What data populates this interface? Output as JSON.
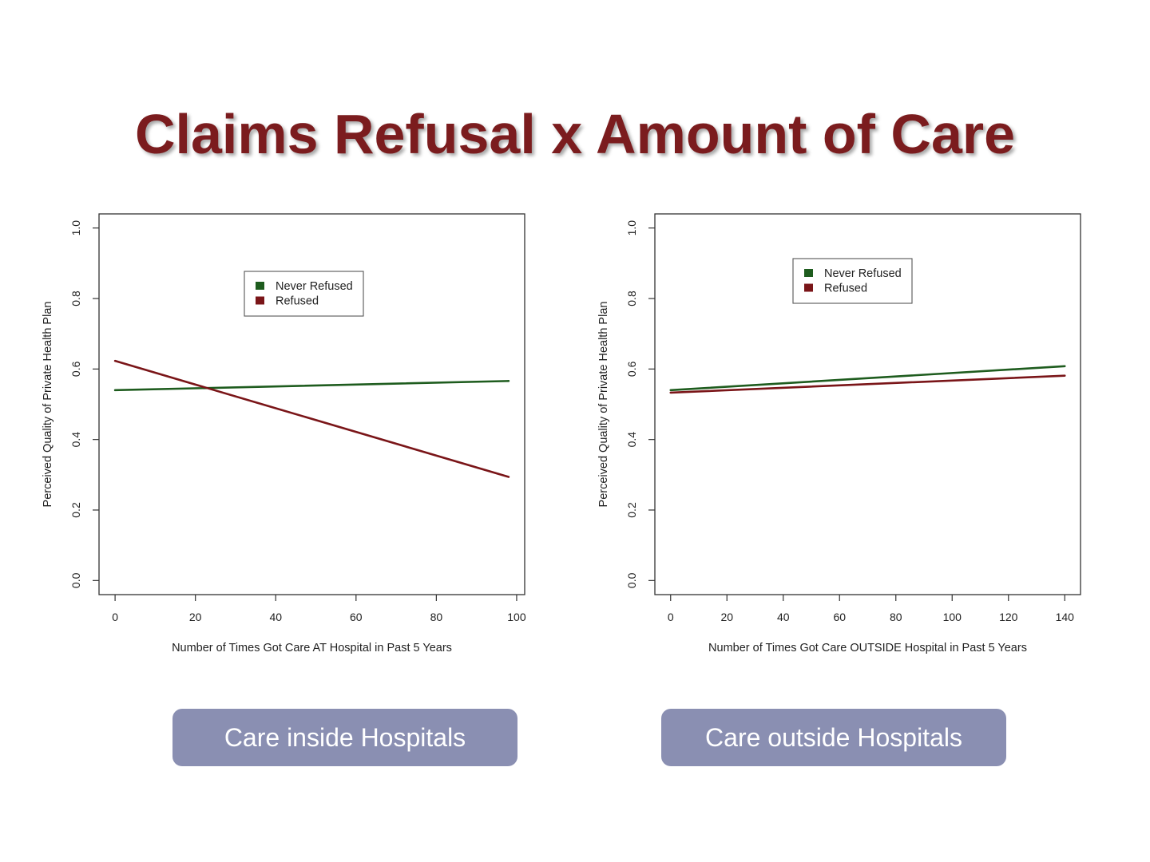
{
  "slide": {
    "title": "Claims Refusal x Amount of Care",
    "captions": [
      "Care inside Hospitals",
      "Care outside Hospitals"
    ]
  },
  "colors": {
    "title": "#7b1c1e",
    "never_refused": "#1e5c1e",
    "refused": "#7a1518",
    "caption_bg": "#8a8fb2"
  },
  "chart_data": [
    {
      "type": "line",
      "xlabel": "Number of Times Got Care AT Hospital in Past 5 Years",
      "ylabel": "Perceived Quality of Private Health Plan",
      "xlim": [
        -4,
        102
      ],
      "ylim": [
        -0.04,
        1.04
      ],
      "xticks": [
        0,
        20,
        40,
        60,
        80,
        100
      ],
      "xtick_labels": [
        "0",
        "20",
        "40",
        "60",
        "80",
        "100"
      ],
      "yticks": [
        0.0,
        0.2,
        0.4,
        0.6,
        0.8,
        1.0
      ],
      "ytick_labels": [
        "0.0",
        "0.2",
        "0.4",
        "0.6",
        "0.8",
        "1.0"
      ],
      "legend_position": "top-center",
      "series": [
        {
          "name": "Never Refused",
          "color": "#1e5c1e",
          "x": [
            0,
            98
          ],
          "y": [
            0.54,
            0.566
          ]
        },
        {
          "name": "Refused",
          "color": "#7a1518",
          "x": [
            0,
            98
          ],
          "y": [
            0.623,
            0.294
          ]
        }
      ]
    },
    {
      "type": "line",
      "xlabel": "Number of Times Got Care OUTSIDE Hospital in Past 5 Years",
      "ylabel": "Perceived Quality of Private Health Plan",
      "xlim": [
        -5.6,
        145.6
      ],
      "ylim": [
        -0.04,
        1.04
      ],
      "xticks": [
        0,
        20,
        40,
        60,
        80,
        100,
        120,
        140
      ],
      "xtick_labels": [
        "0",
        "20",
        "40",
        "60",
        "80",
        "100",
        "120",
        "140"
      ],
      "yticks": [
        0.0,
        0.2,
        0.4,
        0.6,
        0.8,
        1.0
      ],
      "ytick_labels": [
        "0.0",
        "0.2",
        "0.4",
        "0.6",
        "0.8",
        "1.0"
      ],
      "legend_position": "top-center",
      "series": [
        {
          "name": "Never Refused",
          "color": "#1e5c1e",
          "x": [
            0,
            140
          ],
          "y": [
            0.54,
            0.608
          ]
        },
        {
          "name": "Refused",
          "color": "#7a1518",
          "x": [
            0,
            140
          ],
          "y": [
            0.533,
            0.581
          ]
        }
      ]
    }
  ]
}
